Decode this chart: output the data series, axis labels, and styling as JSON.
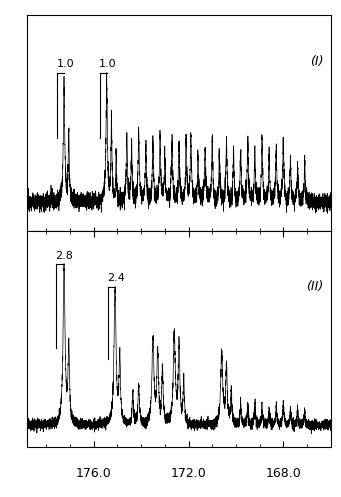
{
  "xlim_left": 178.8,
  "xlim_right": 166.0,
  "xticks_major": [
    176.0,
    172.0,
    168.0
  ],
  "xticks_minor": [
    178.0,
    177.0,
    175.0,
    174.0,
    173.0,
    171.0,
    170.0,
    169.0,
    167.0
  ],
  "xticklabels": [
    "176.0",
    "172.0",
    "168.0"
  ],
  "background_color": "#ffffff",
  "line_color": "#000000",
  "seed": 12345,
  "noise_I": 0.035,
  "noise_II": 0.045,
  "panel_I_ylim": [
    -0.25,
    1.6
  ],
  "panel_II_ylim": [
    -0.4,
    3.5
  ]
}
